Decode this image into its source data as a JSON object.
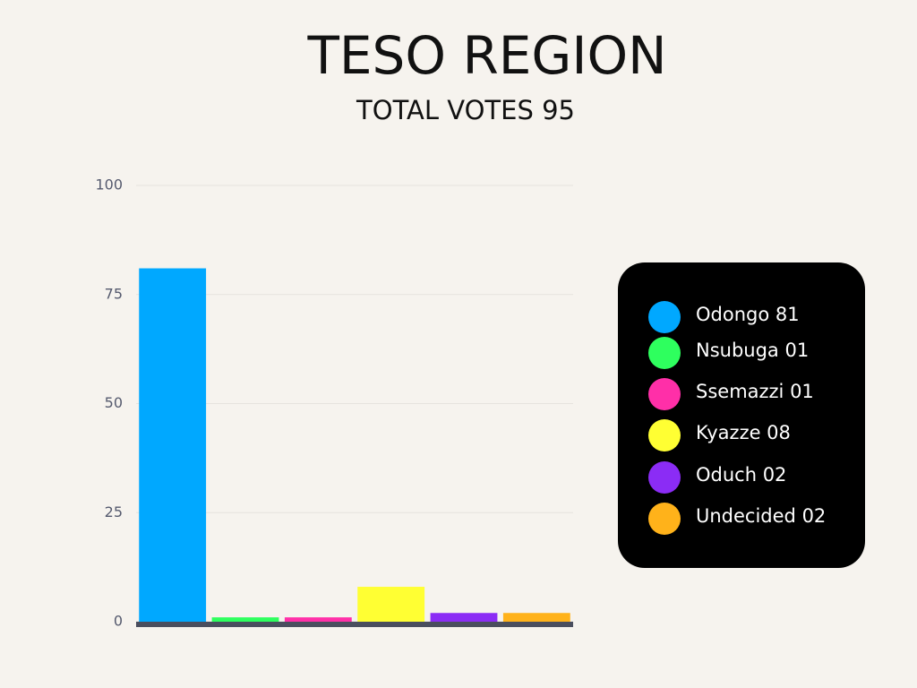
{
  "chart_data": {
    "type": "bar",
    "title": "TESO REGION",
    "subtitle": "TOTAL VOTES 95",
    "series": [
      {
        "name": "Odongo 81",
        "color": "#00a8ff",
        "values": [
          81
        ]
      },
      {
        "name": "Nsubuga 01",
        "color": "#2eff5e",
        "values": [
          1
        ]
      },
      {
        "name": "Ssemazzi 01",
        "color": "#ff2fa8",
        "values": [
          1
        ]
      },
      {
        "name": "Kyazze 08",
        "color": "#ffff33",
        "values": [
          8
        ]
      },
      {
        "name": "Oduch 02",
        "color": "#8b2cf5",
        "values": [
          2
        ]
      },
      {
        "name": "Undecided 02",
        "color": "#ffb21a",
        "values": [
          2
        ]
      }
    ],
    "ylim": [
      0,
      100
    ],
    "yticks": [
      0,
      25,
      50,
      75,
      100
    ],
    "grid": true,
    "legend": "right"
  }
}
